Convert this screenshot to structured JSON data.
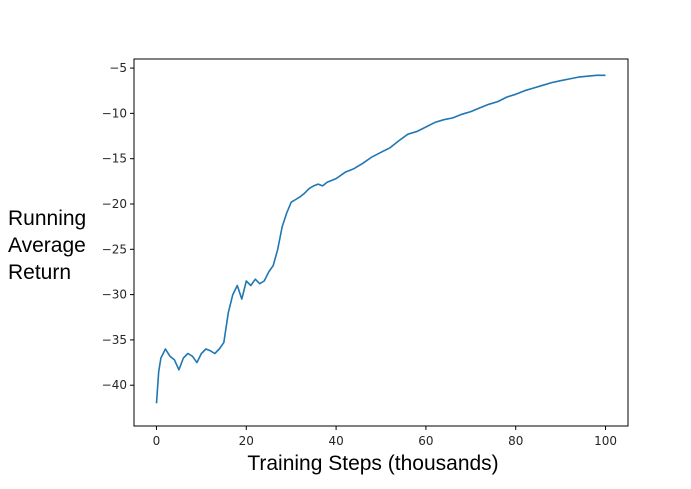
{
  "chart_data": {
    "type": "line",
    "title": "",
    "xlabel": "Training Steps (thousands)",
    "ylabel_lines": [
      "Running",
      "Average",
      "Return"
    ],
    "xlim": [
      -5,
      105
    ],
    "ylim": [
      -44.5,
      -4.0
    ],
    "xticks": [
      0,
      20,
      40,
      60,
      80,
      100
    ],
    "xtick_labels": [
      "0",
      "20",
      "40",
      "60",
      "80",
      "100"
    ],
    "yticks": [
      -40,
      -35,
      -30,
      -25,
      -20,
      -15,
      -10,
      -5
    ],
    "ytick_labels": [
      "−40",
      "−35",
      "−30",
      "−25",
      "−20",
      "−15",
      "−10",
      "−5"
    ],
    "grid": false,
    "legend": "none",
    "series": [
      {
        "color": "#1f77b4",
        "x": [
          0,
          0.5,
          1,
          1.5,
          2,
          3,
          4,
          5,
          6,
          7,
          8,
          9,
          10,
          11,
          12,
          13,
          14,
          15,
          16,
          17,
          18,
          19,
          20,
          21,
          22,
          23,
          24,
          25,
          26,
          27,
          28,
          29,
          30,
          31,
          32,
          33,
          34,
          35,
          36,
          37,
          38,
          40,
          42,
          44,
          46,
          48,
          50,
          52,
          54,
          56,
          58,
          60,
          62,
          64,
          66,
          68,
          70,
          72,
          74,
          76,
          78,
          80,
          82,
          84,
          86,
          88,
          90,
          92,
          94,
          96,
          98,
          100
        ],
        "y": [
          -42,
          -38.5,
          -37,
          -36.5,
          -36,
          -36.8,
          -37.2,
          -38.3,
          -37,
          -36.5,
          -36.8,
          -37.5,
          -36.5,
          -36,
          -36.2,
          -36.5,
          -36,
          -35.3,
          -32,
          -30,
          -29,
          -30.5,
          -28.5,
          -29,
          -28.3,
          -28.8,
          -28.5,
          -27.5,
          -26.8,
          -25,
          -22.5,
          -21,
          -19.8,
          -19.5,
          -19.2,
          -18.8,
          -18.3,
          -18,
          -17.8,
          -18,
          -17.6,
          -17.2,
          -16.5,
          -16.1,
          -15.5,
          -14.8,
          -14.3,
          -13.8,
          -13,
          -12.3,
          -12,
          -11.5,
          -11,
          -10.7,
          -10.5,
          -10.1,
          -9.8,
          -9.4,
          -9,
          -8.7,
          -8.2,
          -7.9,
          -7.5,
          -7.2,
          -6.9,
          -6.6,
          -6.4,
          -6.2,
          -6.0,
          -5.9,
          -5.8,
          -5.8
        ]
      }
    ]
  }
}
